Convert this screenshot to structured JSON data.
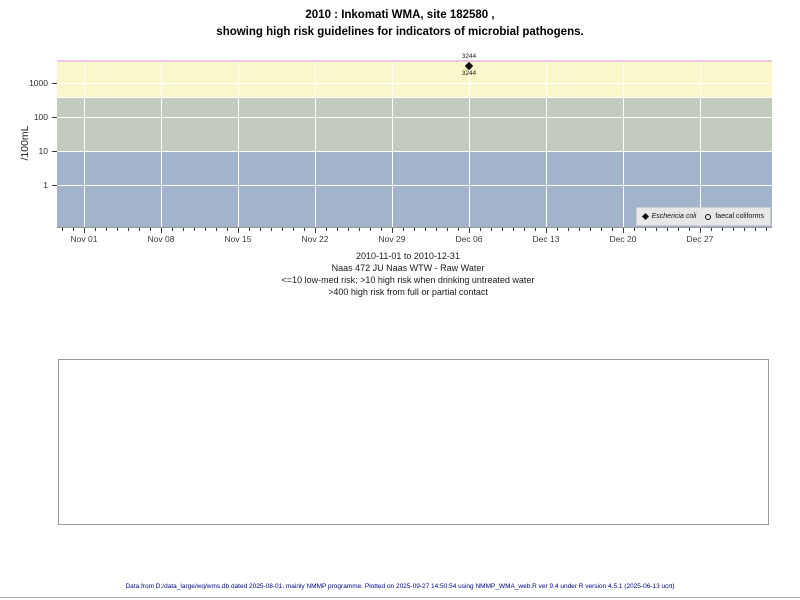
{
  "page": {
    "title_line1": "2010 : Inkomati WMA, site 182580 ,",
    "title_line2": "showing high risk guidelines for indicators of microbial pathogens.",
    "footer": "Data from D:/data_large/wq/wms.db dated 2025-08-01, mainly NMMP programme. Plotted on 2025-09-27 14:50:54 using NMMP_WMA_web.R ver 9.4 under R version 4.5.1 (2025-06-13 ucrt)"
  },
  "chart_data": {
    "type": "scatter",
    "title": "2010 : Inkomati WMA, site 182580 , showing high risk guidelines for indicators of microbial pathogens.",
    "ylabel": "/100mL",
    "y_scale": "log10",
    "ylim": [
      0.058,
      4742
    ],
    "y_ticks": [
      1,
      10,
      100,
      1000
    ],
    "y_gridline_values": [
      1,
      10,
      100,
      400,
      1000
    ],
    "x_domain_days": [
      -2.45,
      62.55
    ],
    "x_start_date": "2010-11-01",
    "x_major_ticks": [
      {
        "day": 0,
        "label": "Nov 01"
      },
      {
        "day": 7,
        "label": "Nov 08"
      },
      {
        "day": 14,
        "label": "Nov 15"
      },
      {
        "day": 21,
        "label": "Nov 22"
      },
      {
        "day": 28,
        "label": "Nov 29"
      },
      {
        "day": 35,
        "label": "Dec 06"
      },
      {
        "day": 42,
        "label": "Dec 13"
      },
      {
        "day": 49,
        "label": "Dec 20"
      },
      {
        "day": 56,
        "label": "Dec 27"
      }
    ],
    "bands": [
      {
        "name": "high-risk-contact",
        "from": 400,
        "to": 4742,
        "color": "#FBF7CB",
        "meaning": ">400 high risk from full or partial contact"
      },
      {
        "name": "high-risk-drinking",
        "from": 10,
        "to": 400,
        "color": "#C3CBBF",
        "meaning": ">10 high risk when drinking untreated water"
      },
      {
        "name": "low-med-risk",
        "from": 0.058,
        "to": 10,
        "color": "#A2B3CB",
        "meaning": "<=10 low-med risk"
      }
    ],
    "top_line_color": "#EBC7E1",
    "grid_color": "#FFFFFF",
    "series": [
      {
        "name": "Eschericia coli",
        "marker": "filled-diamond",
        "italic": true,
        "points": [
          {
            "day": 35,
            "date": "Dec 06",
            "value": 3244,
            "label": "3244"
          }
        ]
      },
      {
        "name": "faecal coliforms",
        "marker": "open-circle",
        "italic": false,
        "points": []
      }
    ],
    "captions": [
      "2010-11-01 to 2010-12-31",
      "Naas 472 JU Naas WTW - Raw Water",
      "<=10 low-med risk; >10 high risk when drinking untreated water",
      ">400 high risk from full or partial contact"
    ]
  }
}
